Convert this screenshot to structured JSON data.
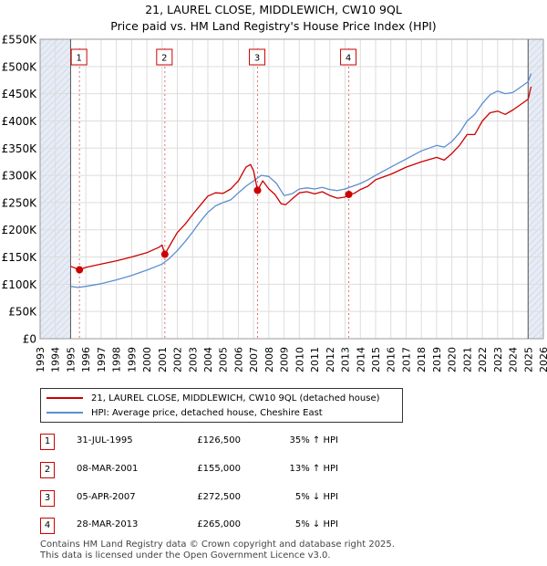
{
  "title": "21, LAUREL CLOSE, MIDDLEWICH, CW10 9QL",
  "subtitle": "Price paid vs. HM Land Registry's House Price Index (HPI)",
  "colors": {
    "property": "#cc0000",
    "hpi": "#5b8fd1",
    "shade": "#e6ecf7"
  },
  "chart_data": {
    "type": "line",
    "title": "21, LAUREL CLOSE, MIDDLEWICH, CW10 9QL",
    "subtitle": "Price paid vs. HM Land Registry's House Price Index (HPI)",
    "xlim": [
      1993,
      2026
    ],
    "ylim": [
      0,
      550000
    ],
    "x_ticks": [
      1993,
      1994,
      1995,
      1996,
      1997,
      1998,
      1999,
      2000,
      2001,
      2002,
      2003,
      2004,
      2005,
      2006,
      2007,
      2008,
      2009,
      2010,
      2011,
      2012,
      2013,
      2014,
      2015,
      2016,
      2017,
      2018,
      2019,
      2020,
      2021,
      2022,
      2023,
      2024,
      2025,
      2026
    ],
    "y_ticks": [
      0,
      50000,
      100000,
      150000,
      200000,
      250000,
      300000,
      350000,
      400000,
      450000,
      500000,
      550000
    ],
    "y_tick_labels": [
      "£0",
      "£50K",
      "£100K",
      "£150K",
      "£200K",
      "£250K",
      "£300K",
      "£350K",
      "£400K",
      "£450K",
      "£500K",
      "£550K"
    ],
    "shaded_ranges": [
      [
        1993,
        1995.0
      ],
      [
        2025.0,
        2026
      ]
    ],
    "series": [
      {
        "name": "21, LAUREL CLOSE, MIDDLEWICH, CW10 9QL (detached house)",
        "x": [
          1995.0,
          1995.58,
          1996.0,
          1997.0,
          1998.0,
          1999.0,
          2000.0,
          2000.8,
          2001.0,
          2001.18,
          2001.6,
          2002.0,
          2002.5,
          2003.0,
          2003.5,
          2004.0,
          2004.5,
          2005.0,
          2005.5,
          2006.0,
          2006.5,
          2006.8,
          2007.0,
          2007.26,
          2007.6,
          2008.0,
          2008.4,
          2008.8,
          2009.1,
          2009.5,
          2010.0,
          2010.5,
          2011.0,
          2011.5,
          2012.0,
          2012.5,
          2013.0,
          2013.24,
          2013.6,
          2014.0,
          2014.5,
          2015.0,
          2016.0,
          2017.0,
          2018.0,
          2019.0,
          2019.5,
          2020.0,
          2020.5,
          2021.0,
          2021.5,
          2022.0,
          2022.5,
          2023.0,
          2023.5,
          2024.0,
          2024.5,
          2025.0,
          2025.2
        ],
        "y": [
          133000,
          126500,
          131000,
          137000,
          143000,
          150000,
          158000,
          168000,
          172000,
          155000,
          176000,
          195000,
          210000,
          228000,
          245000,
          262000,
          268000,
          267000,
          275000,
          290000,
          315000,
          320000,
          308000,
          272500,
          290000,
          275000,
          265000,
          248000,
          246000,
          256000,
          268000,
          270000,
          266000,
          270000,
          263000,
          258000,
          260000,
          265000,
          267000,
          274000,
          280000,
          292000,
          302000,
          315000,
          325000,
          333000,
          328000,
          340000,
          355000,
          375000,
          375000,
          400000,
          415000,
          418000,
          412000,
          420000,
          430000,
          440000,
          463000
        ]
      },
      {
        "name": "HPI: Average price, detached house, Cheshire East",
        "x": [
          1995.0,
          1995.5,
          1996.0,
          1997.0,
          1998.0,
          1999.0,
          2000.0,
          2001.0,
          2001.5,
          2002.0,
          2002.5,
          2003.0,
          2003.5,
          2004.0,
          2004.5,
          2005.0,
          2005.5,
          2006.0,
          2006.5,
          2007.0,
          2007.5,
          2008.0,
          2008.5,
          2009.0,
          2009.5,
          2010.0,
          2010.5,
          2011.0,
          2011.5,
          2012.0,
          2012.5,
          2013.0,
          2013.5,
          2014.0,
          2014.5,
          2015.0,
          2016.0,
          2017.0,
          2018.0,
          2019.0,
          2019.5,
          2020.0,
          2020.5,
          2021.0,
          2021.5,
          2022.0,
          2022.5,
          2023.0,
          2023.5,
          2024.0,
          2024.5,
          2025.0,
          2025.2
        ],
        "y": [
          96000,
          94000,
          96000,
          101000,
          108000,
          116000,
          126000,
          137000,
          148000,
          162000,
          178000,
          196000,
          215000,
          232000,
          244000,
          250000,
          255000,
          268000,
          280000,
          290000,
          300000,
          298000,
          285000,
          263000,
          266000,
          275000,
          277000,
          275000,
          278000,
          274000,
          272000,
          275000,
          280000,
          285000,
          292000,
          300000,
          315000,
          330000,
          345000,
          355000,
          352000,
          362000,
          378000,
          400000,
          412000,
          432000,
          448000,
          455000,
          450000,
          452000,
          462000,
          472000,
          487000
        ]
      }
    ],
    "markers": [
      {
        "label": "1",
        "x": 1995.58,
        "y": 126500
      },
      {
        "label": "2",
        "x": 2001.18,
        "y": 155000
      },
      {
        "label": "3",
        "x": 2007.26,
        "y": 272500
      },
      {
        "label": "4",
        "x": 2013.24,
        "y": 265000
      }
    ]
  },
  "legend": {
    "property": "21, LAUREL CLOSE, MIDDLEWICH, CW10 9QL (detached house)",
    "hpi": "HPI: Average price, detached house, Cheshire East"
  },
  "transactions": [
    {
      "num": "1",
      "date": "31-JUL-1995",
      "price": "£126,500",
      "hpi": "35% ↑ HPI"
    },
    {
      "num": "2",
      "date": "08-MAR-2001",
      "price": "£155,000",
      "hpi": "13% ↑ HPI"
    },
    {
      "num": "3",
      "date": "05-APR-2007",
      "price": "£272,500",
      "hpi": "5% ↓ HPI"
    },
    {
      "num": "4",
      "date": "28-MAR-2013",
      "price": "£265,000",
      "hpi": "5% ↓ HPI"
    }
  ],
  "footer": {
    "line1": "Contains HM Land Registry data © Crown copyright and database right 2025.",
    "line2": "This data is licensed under the Open Government Licence v3.0."
  }
}
